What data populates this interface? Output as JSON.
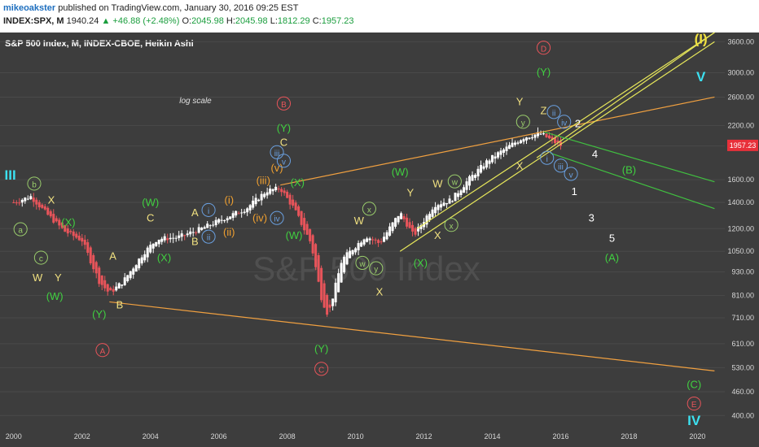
{
  "header": {
    "author": "mikeoakster",
    "published": "published on TradingView.com, January 30, 2016 09:25 EST",
    "ticker": "INDEX:SPX, M",
    "price": "1940.24",
    "change": "+46.88 (+2.48%)",
    "o_label": "O:",
    "o": "2045.98",
    "h_label": "H:",
    "h": "2045.98",
    "l_label": "L:",
    "l": "1812.29",
    "c_label": "C:",
    "c": "1957.23"
  },
  "chart_data": {
    "type": "candlestick",
    "title": "S&P 500 Index, M, INDEX-CBOE, Heikin Ashi",
    "watermark": "S&P 500 Index",
    "scale": "log",
    "scale_label": "log scale",
    "x_ticks": [
      "2000",
      "2002",
      "2004",
      "2006",
      "2008",
      "2010",
      "2012",
      "2014",
      "2016",
      "2018",
      "2020"
    ],
    "y_ticks": [
      3600,
      3000,
      2600,
      2200,
      1950,
      1600,
      1400,
      1200,
      1050,
      930,
      810,
      710,
      610,
      530,
      460,
      400
    ],
    "ylim": [
      380,
      3800
    ],
    "last_price_label": "1957.23",
    "colors": {
      "up": "#ffffff",
      "down": "#e8545a",
      "background": "#3d3d3d",
      "axis_text": "#d8d8d8"
    },
    "price_path": [
      [
        2000.0,
        1400
      ],
      [
        2000.5,
        1450
      ],
      [
        2001.0,
        1300
      ],
      [
        2001.5,
        1180
      ],
      [
        2002.0,
        1120
      ],
      [
        2002.5,
        880
      ],
      [
        2002.8,
        820
      ],
      [
        2003.2,
        880
      ],
      [
        2003.8,
        1040
      ],
      [
        2004.2,
        1130
      ],
      [
        2004.8,
        1140
      ],
      [
        2005.5,
        1200
      ],
      [
        2006.2,
        1280
      ],
      [
        2006.8,
        1350
      ],
      [
        2007.4,
        1500
      ],
      [
        2007.8,
        1520
      ],
      [
        2008.2,
        1350
      ],
      [
        2008.7,
        1100
      ],
      [
        2009.0,
        800
      ],
      [
        2009.2,
        720
      ],
      [
        2009.6,
        1000
      ],
      [
        2010.3,
        1150
      ],
      [
        2010.7,
        1100
      ],
      [
        2011.3,
        1320
      ],
      [
        2011.7,
        1150
      ],
      [
        2012.3,
        1380
      ],
      [
        2012.8,
        1420
      ],
      [
        2013.3,
        1600
      ],
      [
        2013.9,
        1800
      ],
      [
        2014.5,
        1950
      ],
      [
        2014.9,
        2050
      ],
      [
        2015.4,
        2100
      ],
      [
        2015.8,
        2000
      ],
      [
        2016.0,
        1957
      ]
    ],
    "trendlines": [
      {
        "color": "#f0a040",
        "points": [
          [
            2002.8,
            780
          ],
          [
            2020.5,
            520
          ]
        ]
      },
      {
        "color": "#f0a040",
        "points": [
          [
            2007.8,
            1550
          ],
          [
            2020.5,
            2600
          ]
        ]
      },
      {
        "color": "#e6e65a",
        "points": [
          [
            2011.8,
            1200
          ],
          [
            2020.5,
            3800
          ]
        ]
      },
      {
        "color": "#e6e65a",
        "points": [
          [
            2011.3,
            1050
          ],
          [
            2020.5,
            3600
          ]
        ]
      },
      {
        "color": "#e6e65a",
        "points": [
          [
            2015.3,
            1820
          ],
          [
            2020.5,
            3800
          ]
        ]
      },
      {
        "color": "#40c040",
        "points": [
          [
            2015.5,
            2120
          ],
          [
            2020.5,
            1580
          ]
        ]
      },
      {
        "color": "#40c040",
        "points": [
          [
            2015.7,
            1870
          ],
          [
            2020.5,
            1350
          ]
        ]
      }
    ],
    "wave_labels": [
      {
        "text": "III",
        "t": 1999.9,
        "p": 1600,
        "color": "#3ce0f0",
        "size": 17,
        "bold": true
      },
      {
        "text": "b",
        "t": 2000.6,
        "p": 1530,
        "color": "#9acd6c",
        "circle": true
      },
      {
        "text": "a",
        "t": 2000.2,
        "p": 1170,
        "color": "#9acd6c",
        "circle": true
      },
      {
        "text": "X",
        "t": 2001.1,
        "p": 1390,
        "color": "#f0e080"
      },
      {
        "text": "(X)",
        "t": 2001.6,
        "p": 1220,
        "color": "#40d040"
      },
      {
        "text": "c",
        "t": 2000.8,
        "p": 990,
        "color": "#9acd6c",
        "circle": true
      },
      {
        "text": "W",
        "t": 2000.7,
        "p": 880,
        "color": "#f0e080"
      },
      {
        "text": "Y",
        "t": 2001.3,
        "p": 880,
        "color": "#f0e080"
      },
      {
        "text": "(W)",
        "t": 2001.2,
        "p": 790,
        "color": "#40d040"
      },
      {
        "text": "A",
        "t": 2002.9,
        "p": 1000,
        "color": "#f0e080"
      },
      {
        "text": "(Y)",
        "t": 2002.5,
        "p": 710,
        "color": "#40d040"
      },
      {
        "text": "B",
        "t": 2003.1,
        "p": 750,
        "color": "#f0e080"
      },
      {
        "text": "A",
        "t": 2002.6,
        "p": 575,
        "color": "#e8545a",
        "circle": true
      },
      {
        "text": "(W)",
        "t": 2004.0,
        "p": 1370,
        "color": "#40d040"
      },
      {
        "text": "C",
        "t": 2004.0,
        "p": 1250,
        "color": "#f0e080"
      },
      {
        "text": "(X)",
        "t": 2004.4,
        "p": 990,
        "color": "#40d040"
      },
      {
        "text": "A",
        "t": 2005.3,
        "p": 1290,
        "color": "#f0e080"
      },
      {
        "text": "i",
        "t": 2005.7,
        "p": 1310,
        "color": "#6aa0e0",
        "circle": true
      },
      {
        "text": "B",
        "t": 2005.3,
        "p": 1090,
        "color": "#f0e080"
      },
      {
        "text": "ii",
        "t": 2005.7,
        "p": 1120,
        "color": "#6aa0e0",
        "circle": true
      },
      {
        "text": "(i)",
        "t": 2006.3,
        "p": 1390,
        "color": "#f0a030"
      },
      {
        "text": "(ii)",
        "t": 2006.3,
        "p": 1150,
        "color": "#f0a030"
      },
      {
        "text": "(iii)",
        "t": 2007.3,
        "p": 1560,
        "color": "#f0a030"
      },
      {
        "text": "(iv)",
        "t": 2007.2,
        "p": 1250,
        "color": "#f0a030"
      },
      {
        "text": "iv",
        "t": 2007.7,
        "p": 1250,
        "color": "#6aa0e0",
        "circle": true
      },
      {
        "text": "(v)",
        "t": 2007.7,
        "p": 1680,
        "color": "#f0a030"
      },
      {
        "text": "iii",
        "t": 2007.7,
        "p": 1840,
        "color": "#6aa0e0",
        "circle": true
      },
      {
        "text": "v",
        "t": 2007.9,
        "p": 1750,
        "color": "#6aa0e0",
        "circle": true
      },
      {
        "text": "C",
        "t": 2007.9,
        "p": 1950,
        "color": "#f0e080"
      },
      {
        "text": "(Y)",
        "t": 2007.9,
        "p": 2120,
        "color": "#40d040"
      },
      {
        "text": "B",
        "t": 2007.9,
        "p": 2450,
        "color": "#e8545a",
        "circle": true
      },
      {
        "text": "(X)",
        "t": 2008.3,
        "p": 1540,
        "color": "#40d040"
      },
      {
        "text": "(W)",
        "t": 2008.2,
        "p": 1130,
        "color": "#40d040"
      },
      {
        "text": "(Y)",
        "t": 2009.0,
        "p": 580,
        "color": "#40d040"
      },
      {
        "text": "C",
        "t": 2009.0,
        "p": 515,
        "color": "#e8545a",
        "circle": true
      },
      {
        "text": "W",
        "t": 2010.1,
        "p": 1230,
        "color": "#f0e080"
      },
      {
        "text": "x",
        "t": 2010.4,
        "p": 1320,
        "color": "#9acd6c",
        "circle": true
      },
      {
        "text": "w",
        "t": 2010.2,
        "p": 960,
        "color": "#9acd6c",
        "circle": true
      },
      {
        "text": "y",
        "t": 2010.6,
        "p": 930,
        "color": "#9acd6c",
        "circle": true
      },
      {
        "text": "X",
        "t": 2010.7,
        "p": 810,
        "color": "#f0e080"
      },
      {
        "text": "(W)",
        "t": 2011.3,
        "p": 1640,
        "color": "#40d040"
      },
      {
        "text": "Y",
        "t": 2011.6,
        "p": 1450,
        "color": "#f0e080"
      },
      {
        "text": "W",
        "t": 2012.4,
        "p": 1530,
        "color": "#f0e080"
      },
      {
        "text": "w",
        "t": 2012.9,
        "p": 1550,
        "color": "#9acd6c",
        "circle": true
      },
      {
        "text": "X",
        "t": 2012.4,
        "p": 1130,
        "color": "#f0e080"
      },
      {
        "text": "x",
        "t": 2012.8,
        "p": 1200,
        "color": "#9acd6c",
        "circle": true
      },
      {
        "text": "(X)",
        "t": 2011.9,
        "p": 960,
        "color": "#40d040"
      },
      {
        "text": "Y",
        "t": 2014.8,
        "p": 2480,
        "color": "#f0e080"
      },
      {
        "text": "y",
        "t": 2014.9,
        "p": 2200,
        "color": "#9acd6c",
        "circle": true
      },
      {
        "text": "X",
        "t": 2014.8,
        "p": 1700,
        "color": "#f0e080"
      },
      {
        "text": "Z",
        "t": 2015.5,
        "p": 2350,
        "color": "#f0e080"
      },
      {
        "text": "D",
        "t": 2015.5,
        "p": 3400,
        "color": "#e8545a",
        "circle": true
      },
      {
        "text": "(Y)",
        "t": 2015.5,
        "p": 2950,
        "color": "#40d040"
      },
      {
        "text": "ii",
        "t": 2015.8,
        "p": 2330,
        "color": "#6aa0e0",
        "circle": true
      },
      {
        "text": "iv",
        "t": 2016.1,
        "p": 2200,
        "color": "#6aa0e0",
        "circle": true
      },
      {
        "text": "2",
        "t": 2016.5,
        "p": 2180,
        "color": "#ffffff"
      },
      {
        "text": "i",
        "t": 2015.6,
        "p": 1780,
        "color": "#6aa0e0",
        "circle": true
      },
      {
        "text": "iii",
        "t": 2016.0,
        "p": 1700,
        "color": "#6aa0e0",
        "circle": true
      },
      {
        "text": "v",
        "t": 2016.3,
        "p": 1620,
        "color": "#6aa0e0",
        "circle": true
      },
      {
        "text": "1",
        "t": 2016.4,
        "p": 1460,
        "color": "#ffffff"
      },
      {
        "text": "4",
        "t": 2017.0,
        "p": 1820,
        "color": "#ffffff"
      },
      {
        "text": "(B)",
        "t": 2018.0,
        "p": 1660,
        "color": "#40d040"
      },
      {
        "text": "3",
        "t": 2016.9,
        "p": 1250,
        "color": "#ffffff"
      },
      {
        "text": "5",
        "t": 2017.5,
        "p": 1110,
        "color": "#ffffff"
      },
      {
        "text": "(A)",
        "t": 2017.5,
        "p": 990,
        "color": "#40d040"
      },
      {
        "text": "(I)",
        "t": 2020.1,
        "p": 3560,
        "color": "#f0e040",
        "size": 17,
        "bold": true
      },
      {
        "text": "V",
        "t": 2020.1,
        "p": 2850,
        "color": "#3ce0f0",
        "size": 17,
        "bold": true
      },
      {
        "text": "(C)",
        "t": 2019.9,
        "p": 470,
        "color": "#40d040"
      },
      {
        "text": "E",
        "t": 2019.9,
        "p": 420,
        "color": "#e8545a",
        "circle": true
      },
      {
        "text": "IV",
        "t": 2019.9,
        "p": 378,
        "color": "#3ce0f0",
        "size": 17,
        "bold": true
      }
    ]
  }
}
